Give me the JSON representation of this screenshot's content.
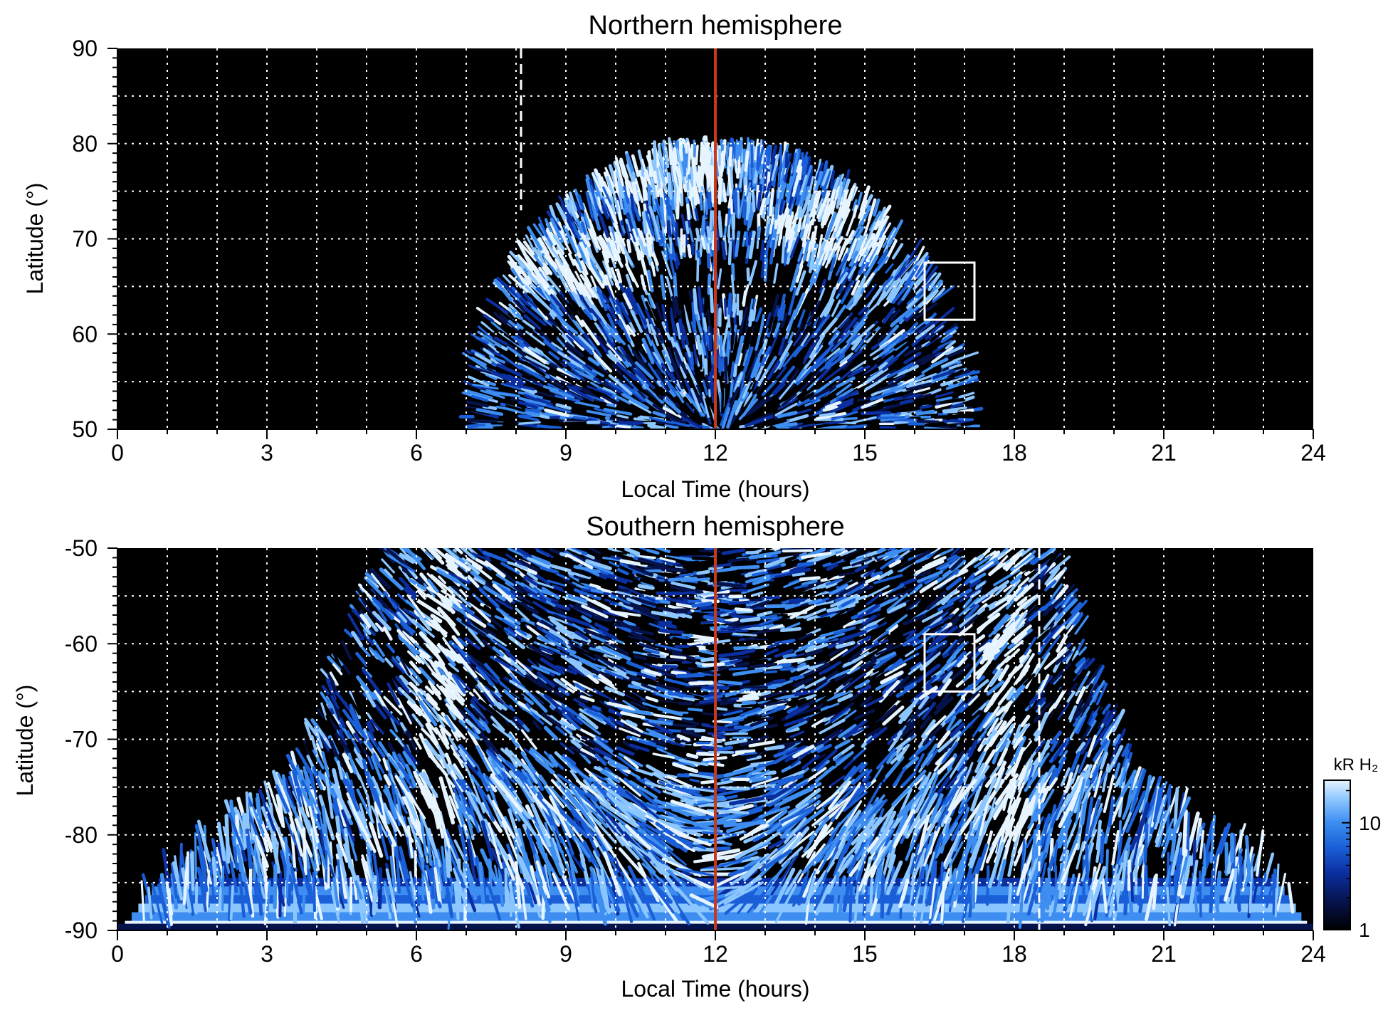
{
  "chart_data": [
    {
      "type": "heatmap",
      "title": "Northern hemisphere",
      "xlabel": "Local Time (hours)",
      "ylabel": "Latitude (°)",
      "xlim": [
        0,
        24
      ],
      "ylim": [
        50,
        90
      ],
      "xticks": [
        0,
        3,
        6,
        9,
        12,
        15,
        18,
        21,
        24
      ],
      "xtick_labels": [
        "0",
        "3",
        "6",
        "9",
        "12",
        "15",
        "18",
        "21",
        "24"
      ],
      "yticks": [
        50,
        60,
        70,
        80,
        90
      ],
      "ytick_labels": [
        "50",
        "60",
        "70",
        "80",
        "90"
      ],
      "grid": true,
      "grid_x_step_hours": 1,
      "grid_y_step_deg": 5,
      "noon_line": {
        "x": 12,
        "color": "#c8391c"
      },
      "dashed_marker": {
        "x": 8.1,
        "ymin": 73,
        "ymax": 90
      },
      "box": {
        "x": [
          16.2,
          17.2
        ],
        "y": [
          61.5,
          67.5
        ]
      },
      "emission_region": {
        "lt_range_at_50deg": [
          7.0,
          17.2
        ],
        "max_latitude": 79.5,
        "bright_spots": [
          {
            "lt": 9.5,
            "lat": 67.5
          },
          {
            "lt": 10.9,
            "lat": 77.5
          },
          {
            "lt": 14.8,
            "lat": 71.5
          }
        ],
        "dark_band": {
          "lt": [
            10.0,
            14.5
          ],
          "lat": [
            63.5,
            68.0
          ]
        }
      }
    },
    {
      "type": "heatmap",
      "title": "Southern hemisphere",
      "xlabel": "Local Time (hours)",
      "ylabel": "Latitude (°)",
      "xlim": [
        0,
        24
      ],
      "ylim": [
        -90,
        -50
      ],
      "xticks": [
        0,
        3,
        6,
        9,
        12,
        15,
        18,
        21,
        24
      ],
      "xtick_labels": [
        "0",
        "3",
        "6",
        "9",
        "12",
        "15",
        "18",
        "21",
        "24"
      ],
      "yticks": [
        -90,
        -80,
        -70,
        -60,
        -50
      ],
      "ytick_labels": [
        "-90",
        "-80",
        "-70",
        "-60",
        "-50"
      ],
      "grid": true,
      "grid_x_step_hours": 1,
      "grid_y_step_deg": 5,
      "noon_line": {
        "x": 12,
        "color": "#c8391c"
      },
      "dashed_marker": {
        "x": 18.5,
        "ymin": -90,
        "ymax": -50
      },
      "box": {
        "x": [
          16.2,
          17.2
        ],
        "y": [
          -65,
          -59
        ]
      },
      "emission_region": {
        "lt_edges": [
          {
            "lat": -50,
            "lt_range": [
              5.3,
              18.8
            ]
          },
          {
            "lat": -75,
            "lt_range": [
              3.3,
              20.6
            ]
          },
          {
            "lat": -82,
            "lt_range": [
              1.2,
              23.0
            ]
          },
          {
            "lat": -90,
            "lt_range": [
              0,
              24
            ]
          }
        ],
        "bright_arcs": [
          {
            "lt": 6.4,
            "lat_range": [
              -50,
              -80
            ]
          },
          {
            "lt": 17.8,
            "lat_range": [
              -50,
              -82
            ]
          }
        ]
      }
    }
  ],
  "colorbar": {
    "label": "kR H₂",
    "scale": "log",
    "range": [
      1,
      25
    ],
    "ticks": [
      1,
      10
    ],
    "tick_labels": [
      "1",
      "10"
    ],
    "colormap": [
      "#000000",
      "#06124a",
      "#0b2fa0",
      "#1a5fd8",
      "#3d8ef0",
      "#8cc6ff",
      "#e6f4ff"
    ]
  }
}
